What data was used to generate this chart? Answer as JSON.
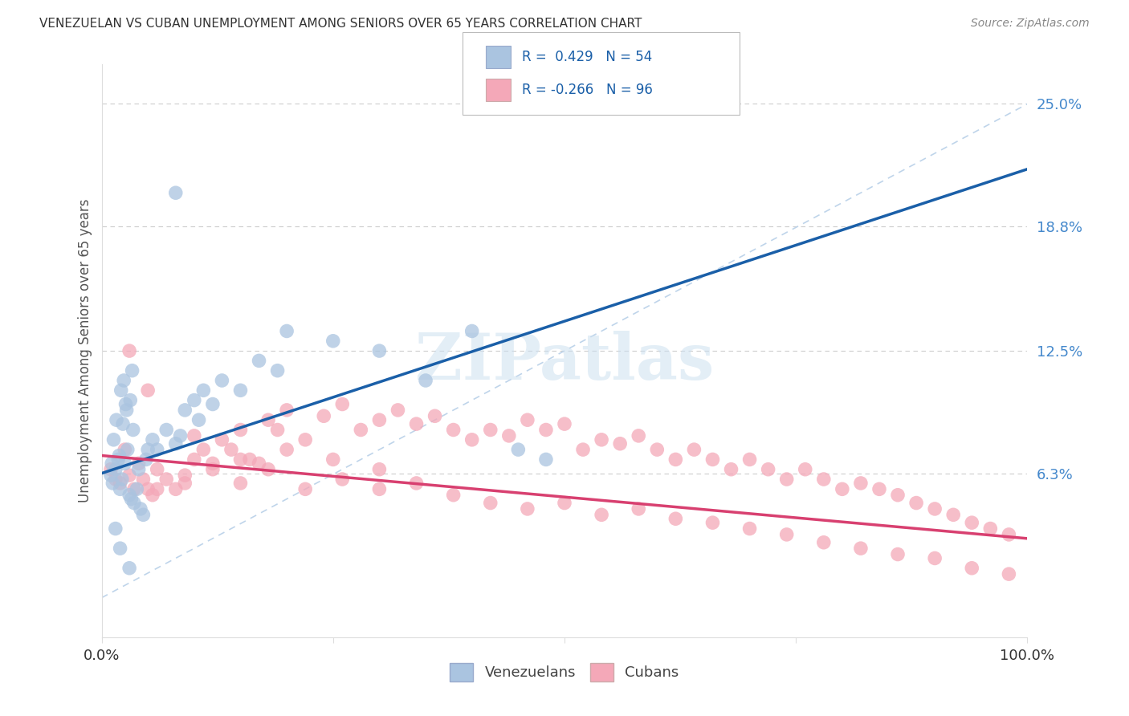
{
  "title": "VENEZUELAN VS CUBAN UNEMPLOYMENT AMONG SENIORS OVER 65 YEARS CORRELATION CHART",
  "source": "Source: ZipAtlas.com",
  "ylabel": "Unemployment Among Seniors over 65 years",
  "xlim": [
    0,
    100
  ],
  "ylim": [
    -2,
    27
  ],
  "right_ytick_values": [
    6.3,
    12.5,
    18.8,
    25.0
  ],
  "right_ytick_labels": [
    "6.3%",
    "12.5%",
    "18.8%",
    "25.0%"
  ],
  "xtick_positions": [
    0,
    25,
    50,
    75,
    100
  ],
  "xtick_labels": [
    "0.0%",
    "",
    "",
    "",
    "100.0%"
  ],
  "venezuelan_R": 0.429,
  "venezuelan_N": 54,
  "cuban_R": -0.266,
  "cuban_N": 96,
  "venezuelan_color": "#aac4e0",
  "cuban_color": "#f4a8b8",
  "venezuelan_line_color": "#1a5fa8",
  "cuban_line_color": "#d84070",
  "diagonal_color": "#b8d0e8",
  "watermark_text": "ZIPatlas",
  "watermark_color": "#cce0f0",
  "background_color": "#ffffff",
  "grid_color": "#cccccc",
  "title_color": "#333333",
  "source_color": "#888888",
  "label_color": "#555555",
  "right_tick_color": "#4488cc",
  "legend_text_color": "#1a5fa8",
  "venezuelan_legend_patch_color": "#aac4e0",
  "cuban_legend_patch_color": "#f4a8b8",
  "ven_x": [
    1.0,
    1.2,
    1.5,
    1.8,
    2.0,
    2.2,
    2.5,
    2.8,
    3.0,
    3.2,
    3.5,
    3.8,
    4.0,
    4.2,
    4.5,
    1.3,
    1.6,
    2.1,
    2.4,
    2.7,
    3.1,
    3.4,
    1.1,
    1.9,
    2.3,
    2.6,
    3.3,
    4.8,
    5.0,
    5.5,
    6.0,
    7.0,
    8.0,
    8.5,
    9.0,
    10.0,
    10.5,
    11.0,
    12.0,
    13.0,
    15.0,
    17.0,
    19.0,
    20.0,
    25.0,
    30.0,
    35.0,
    40.0,
    45.0,
    48.0,
    1.5,
    2.0,
    3.0,
    8.0
  ],
  "ven_y": [
    6.2,
    5.8,
    6.5,
    7.0,
    5.5,
    6.0,
    6.8,
    7.5,
    5.2,
    5.0,
    4.8,
    5.5,
    6.5,
    4.5,
    4.2,
    8.0,
    9.0,
    10.5,
    11.0,
    9.5,
    10.0,
    8.5,
    6.8,
    7.2,
    8.8,
    9.8,
    11.5,
    7.0,
    7.5,
    8.0,
    7.5,
    8.5,
    7.8,
    8.2,
    9.5,
    10.0,
    9.0,
    10.5,
    9.8,
    11.0,
    10.5,
    12.0,
    11.5,
    13.5,
    13.0,
    12.5,
    11.0,
    13.5,
    7.5,
    7.0,
    3.5,
    2.5,
    1.5,
    20.5
  ],
  "cub_x": [
    1.0,
    1.5,
    2.0,
    2.5,
    3.0,
    3.5,
    4.0,
    4.5,
    5.0,
    5.5,
    6.0,
    7.0,
    8.0,
    9.0,
    10.0,
    11.0,
    12.0,
    13.0,
    14.0,
    15.0,
    16.0,
    17.0,
    18.0,
    19.0,
    20.0,
    22.0,
    24.0,
    26.0,
    28.0,
    30.0,
    32.0,
    34.0,
    36.0,
    38.0,
    40.0,
    42.0,
    44.0,
    46.0,
    48.0,
    50.0,
    52.0,
    54.0,
    56.0,
    58.0,
    60.0,
    62.0,
    64.0,
    66.0,
    68.0,
    70.0,
    72.0,
    74.0,
    76.0,
    78.0,
    80.0,
    82.0,
    84.0,
    86.0,
    88.0,
    90.0,
    92.0,
    94.0,
    96.0,
    98.0,
    3.0,
    6.0,
    9.0,
    12.0,
    15.0,
    18.0,
    22.0,
    26.0,
    30.0,
    34.0,
    38.0,
    42.0,
    46.0,
    50.0,
    54.0,
    58.0,
    62.0,
    66.0,
    70.0,
    74.0,
    78.0,
    82.0,
    86.0,
    90.0,
    94.0,
    98.0,
    5.0,
    10.0,
    15.0,
    20.0,
    25.0,
    30.0
  ],
  "cub_y": [
    6.5,
    6.0,
    5.8,
    7.5,
    6.2,
    5.5,
    6.8,
    6.0,
    5.5,
    5.2,
    6.5,
    6.0,
    5.5,
    5.8,
    7.0,
    7.5,
    6.5,
    8.0,
    7.5,
    8.5,
    7.0,
    6.8,
    9.0,
    8.5,
    9.5,
    8.0,
    9.2,
    9.8,
    8.5,
    9.0,
    9.5,
    8.8,
    9.2,
    8.5,
    8.0,
    8.5,
    8.2,
    9.0,
    8.5,
    8.8,
    7.5,
    8.0,
    7.8,
    8.2,
    7.5,
    7.0,
    7.5,
    7.0,
    6.5,
    7.0,
    6.5,
    6.0,
    6.5,
    6.0,
    5.5,
    5.8,
    5.5,
    5.2,
    4.8,
    4.5,
    4.2,
    3.8,
    3.5,
    3.2,
    12.5,
    5.5,
    6.2,
    6.8,
    5.8,
    6.5,
    5.5,
    6.0,
    5.5,
    5.8,
    5.2,
    4.8,
    4.5,
    4.8,
    4.2,
    4.5,
    4.0,
    3.8,
    3.5,
    3.2,
    2.8,
    2.5,
    2.2,
    2.0,
    1.5,
    1.2,
    10.5,
    8.2,
    7.0,
    7.5,
    7.0,
    6.5
  ]
}
